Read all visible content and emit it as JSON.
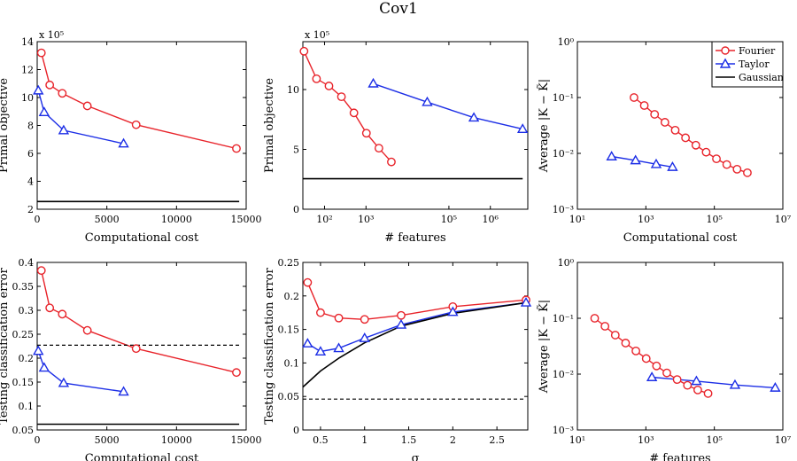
{
  "figure": {
    "title": "Cov1"
  },
  "legend": {
    "entries": [
      {
        "name": "Fourier",
        "color": "#e8232a",
        "marker": "circle"
      },
      {
        "name": "Taylor",
        "color": "#1c2ee6",
        "marker": "triangle"
      },
      {
        "name": "Gaussian",
        "color": "#000000",
        "marker": "none"
      }
    ]
  },
  "chart_data": [
    {
      "id": "p1",
      "type": "line",
      "xlabel": "Computational cost",
      "ylabel": "Primal objective",
      "xscale": "linear",
      "yscale": "linear",
      "xlim": [
        0,
        15000
      ],
      "ylim": [
        2,
        14
      ],
      "xticks": [
        0,
        5000,
        10000,
        15000
      ],
      "xticklabels": [
        "0",
        "5000",
        "10000",
        "15000"
      ],
      "yticks": [
        2,
        4,
        6,
        8,
        10,
        12,
        14
      ],
      "yticklabels": [
        "2",
        "4",
        "6",
        "8",
        "10",
        "12",
        "14"
      ],
      "multiplier": "x 10⁵",
      "series": [
        {
          "legend": "Fourier",
          "color": "#e8232a",
          "marker": "circle",
          "x": [
            300,
            900,
            1800,
            3600,
            7100,
            14300
          ],
          "y": [
            13.2,
            10.9,
            10.3,
            9.4,
            8.05,
            6.35
          ]
        },
        {
          "legend": "Taylor",
          "color": "#1c2ee6",
          "marker": "triangle",
          "x": [
            80,
            500,
            1900,
            6200
          ],
          "y": [
            10.5,
            8.95,
            7.65,
            6.7
          ]
        },
        {
          "legend": "Gaussian",
          "color": "#000000",
          "marker": "none",
          "x": [
            0,
            14500
          ],
          "y": [
            2.55,
            2.55
          ]
        }
      ]
    },
    {
      "id": "p2",
      "type": "line",
      "xlabel": "# features",
      "ylabel": "Primal objective",
      "xscale": "log",
      "yscale": "linear",
      "xlim": [
        30,
        8000000
      ],
      "ylim": [
        0,
        14
      ],
      "xticks": [
        100,
        1000,
        100000,
        1000000
      ],
      "xticklabels": [
        "10²",
        "10³",
        "10⁵",
        "10⁶"
      ],
      "yticks": [
        0,
        5,
        10
      ],
      "yticklabels": [
        "0",
        "5",
        "10"
      ],
      "multiplier": "x 10⁵",
      "series": [
        {
          "legend": "Fourier",
          "color": "#e8232a",
          "marker": "circle",
          "x": [
            32,
            64,
            128,
            256,
            512,
            1024,
            2048,
            4096
          ],
          "y": [
            13.2,
            10.9,
            10.3,
            9.4,
            8.05,
            6.35,
            5.1,
            3.95
          ]
        },
        {
          "legend": "Taylor",
          "color": "#1c2ee6",
          "marker": "triangle",
          "x": [
            1500,
            30000,
            400000,
            6000000
          ],
          "y": [
            10.5,
            8.95,
            7.65,
            6.7
          ]
        },
        {
          "legend": "Gaussian",
          "color": "#000000",
          "marker": "none",
          "x": [
            30,
            6000000
          ],
          "y": [
            2.55,
            2.55
          ]
        }
      ]
    },
    {
      "id": "p3",
      "type": "line",
      "xlabel": "Computational cost",
      "ylabel": "Average |K − K̃|",
      "xscale": "log",
      "yscale": "log",
      "xlim": [
        10,
        10000000
      ],
      "ylim": [
        0.001,
        1
      ],
      "xticks": [
        10,
        1000,
        100000,
        10000000
      ],
      "xticklabels": [
        "10¹",
        "10³",
        "10⁵",
        "10⁷"
      ],
      "yticks": [
        0.001,
        0.01,
        0.1,
        1
      ],
      "yticklabels": [
        "10⁻³",
        "10⁻²",
        "10⁻¹",
        "10⁰"
      ],
      "series": [
        {
          "legend": "Fourier",
          "color": "#e8232a",
          "marker": "circle",
          "x": [
            450,
            900,
            1800,
            3600,
            7200,
            14400,
            28800,
            57600,
            115200,
            230400,
            460800,
            921600
          ],
          "y": [
            0.1,
            0.072,
            0.05,
            0.036,
            0.026,
            0.019,
            0.014,
            0.0105,
            0.008,
            0.0063,
            0.0052,
            0.0045
          ]
        },
        {
          "legend": "Taylor",
          "color": "#1c2ee6",
          "marker": "triangle",
          "x": [
            100,
            500,
            2000,
            6000
          ],
          "y": [
            0.0088,
            0.0075,
            0.0064,
            0.0057
          ]
        }
      ]
    },
    {
      "id": "p4",
      "type": "line",
      "xlabel": "Computational cost",
      "ylabel": "Testing classification error",
      "xscale": "linear",
      "yscale": "linear",
      "xlim": [
        0,
        15000
      ],
      "ylim": [
        0.05,
        0.4
      ],
      "xticks": [
        0,
        5000,
        10000,
        15000
      ],
      "xticklabels": [
        "0",
        "5000",
        "10000",
        "15000"
      ],
      "yticks": [
        0.05,
        0.1,
        0.15,
        0.2,
        0.25,
        0.3,
        0.35,
        0.4
      ],
      "yticklabels": [
        "0.05",
        "0.1",
        "0.15",
        "0.2",
        "0.25",
        "0.3",
        "0.35",
        "0.4"
      ],
      "series": [
        {
          "legend": "Fourier",
          "color": "#e8232a",
          "marker": "circle",
          "x": [
            300,
            900,
            1800,
            3600,
            7100,
            14300
          ],
          "y": [
            0.383,
            0.305,
            0.292,
            0.258,
            0.22,
            0.17
          ]
        },
        {
          "legend": "Taylor",
          "color": "#1c2ee6",
          "marker": "triangle",
          "x": [
            80,
            500,
            1900,
            6200
          ],
          "y": [
            0.215,
            0.18,
            0.148,
            0.13
          ]
        },
        {
          "legend": "Gaussian",
          "color": "#000000",
          "marker": "none",
          "x": [
            0,
            14500
          ],
          "y": [
            0.062,
            0.062
          ]
        },
        {
          "color": "#000000",
          "marker": "none",
          "dashed": true,
          "x": [
            0,
            14500
          ],
          "y": [
            0.227,
            0.227
          ]
        }
      ]
    },
    {
      "id": "p5",
      "type": "line",
      "xlabel": "σ",
      "ylabel": "Testing classification error",
      "xscale": "linear",
      "yscale": "linear",
      "xlim": [
        0.3,
        2.85
      ],
      "ylim": [
        0,
        0.25
      ],
      "xticks": [
        0.5,
        1,
        1.5,
        2,
        2.5
      ],
      "xticklabels": [
        "0.5",
        "1",
        "1.5",
        "2",
        "2.5"
      ],
      "yticks": [
        0,
        0.05,
        0.1,
        0.15,
        0.2,
        0.25
      ],
      "yticklabels": [
        "0",
        "0.05",
        "0.1",
        "0.15",
        "0.2",
        "0.25"
      ],
      "series": [
        {
          "legend": "Fourier",
          "color": "#e8232a",
          "marker": "circle",
          "x": [
            0.354,
            0.5,
            0.707,
            1,
            1.414,
            2,
            2.83
          ],
          "y": [
            0.22,
            0.175,
            0.167,
            0.165,
            0.171,
            0.184,
            0.194
          ]
        },
        {
          "legend": "Taylor",
          "color": "#1c2ee6",
          "marker": "triangle",
          "x": [
            0.354,
            0.5,
            0.707,
            1,
            1.414,
            2,
            2.83
          ],
          "y": [
            0.129,
            0.117,
            0.122,
            0.137,
            0.157,
            0.176,
            0.19
          ]
        },
        {
          "legend": "Gaussian",
          "color": "#000000",
          "marker": "none",
          "x": [
            0.3,
            0.5,
            0.707,
            1,
            1.414,
            2,
            2.83
          ],
          "y": [
            0.064,
            0.088,
            0.107,
            0.13,
            0.155,
            0.174,
            0.19
          ]
        },
        {
          "color": "#000000",
          "marker": "none",
          "dashed": true,
          "x": [
            0.3,
            2.83
          ],
          "y": [
            0.046,
            0.046
          ]
        }
      ]
    },
    {
      "id": "p6",
      "type": "line",
      "xlabel": "# features",
      "ylabel": "Average |K − K̃|",
      "xscale": "log",
      "yscale": "log",
      "xlim": [
        10,
        10000000
      ],
      "ylim": [
        0.001,
        1
      ],
      "xticks": [
        10,
        1000,
        100000,
        10000000
      ],
      "xticklabels": [
        "10¹",
        "10³",
        "10⁵",
        "10⁷"
      ],
      "yticks": [
        0.001,
        0.01,
        0.1,
        1
      ],
      "yticklabels": [
        "10⁻³",
        "10⁻²",
        "10⁻¹",
        "10⁰"
      ],
      "series": [
        {
          "legend": "Fourier",
          "color": "#e8232a",
          "marker": "circle",
          "x": [
            32,
            64,
            128,
            256,
            512,
            1024,
            2048,
            4096,
            8192,
            16384,
            32768,
            65536
          ],
          "y": [
            0.1,
            0.072,
            0.05,
            0.036,
            0.026,
            0.019,
            0.014,
            0.0105,
            0.008,
            0.0063,
            0.0052,
            0.0045
          ]
        },
        {
          "legend": "Taylor",
          "color": "#1c2ee6",
          "marker": "triangle",
          "x": [
            1500,
            30000,
            400000,
            6000000
          ],
          "y": [
            0.0088,
            0.0075,
            0.0064,
            0.0057
          ]
        }
      ]
    }
  ]
}
